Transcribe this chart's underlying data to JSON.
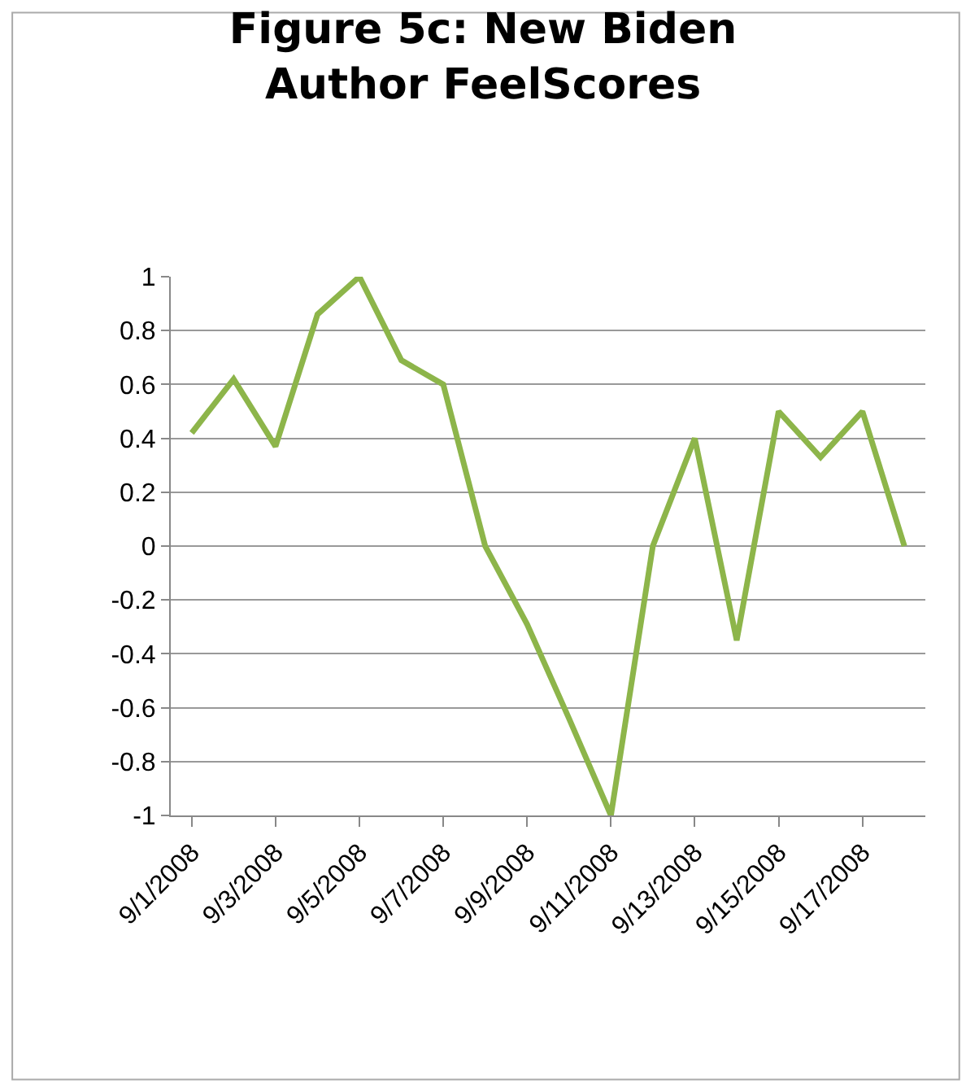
{
  "chart_data": {
    "type": "line",
    "title": "Figure 5c: New Biden Author FeelScores",
    "categories": [
      "9/1/2008",
      null,
      "9/3/2008",
      null,
      "9/5/2008",
      null,
      "9/7/2008",
      null,
      "9/9/2008",
      null,
      "9/11/2008",
      null,
      "9/13/2008",
      null,
      "9/15/2008",
      null,
      "9/17/2008",
      null
    ],
    "series": [
      {
        "color": "#8db54a",
        "values": [
          0.42,
          0.62,
          0.37,
          0.86,
          1.0,
          0.69,
          0.6,
          0.0,
          -0.29,
          -0.64,
          -1.0,
          0.0,
          0.4,
          -0.35,
          0.5,
          0.33,
          0.5,
          0.0
        ]
      }
    ],
    "ylim": [
      -1,
      1
    ],
    "yticks": [
      -1,
      -0.8,
      -0.6,
      -0.4,
      -0.2,
      0,
      0.2,
      0.4,
      0.6,
      0.8,
      1
    ],
    "grid": "y",
    "marker": "none",
    "line_style": "solid"
  }
}
